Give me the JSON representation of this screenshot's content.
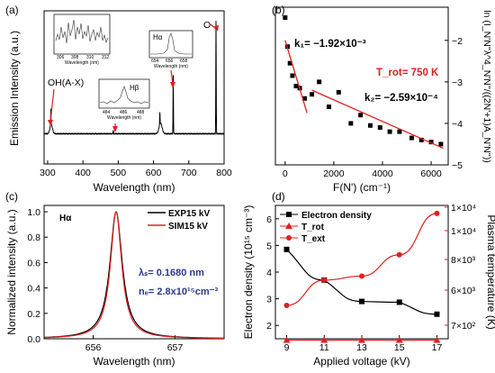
{
  "chart_data": [
    {
      "panel_label": "(a)",
      "type": "line",
      "xlabel": "Wavelength (nm)",
      "ylabel": "Emission Intensity (a.u.)",
      "xlim": [
        290,
        800
      ],
      "xticks": [
        300,
        400,
        500,
        600,
        700,
        800
      ],
      "annotations": [
        "OH(A-X)",
        "Hα",
        "Hβ",
        "O"
      ],
      "spectrum_peaks": [
        {
          "x": 309,
          "y": 0.14
        },
        {
          "x": 486,
          "y": 0.03
        },
        {
          "x": 618,
          "y": 0.1
        },
        {
          "x": 656,
          "y": 0.5
        },
        {
          "x": 777,
          "y": 0.96
        }
      ],
      "insets": [
        {
          "xticks": [
            "306",
            "308",
            "310",
            "312"
          ],
          "xlabel": "Wavelength (nm)"
        },
        {
          "xticks": [
            "484",
            "486",
            "488"
          ],
          "xlabel": "Wavelength (nm)",
          "annotation": "Hβ"
        },
        {
          "xticks": [
            "654",
            "656",
            "658"
          ],
          "xlabel": "Wavelength (nm)",
          "annotation": "Hα"
        }
      ]
    },
    {
      "panel_label": "(b)",
      "type": "scatter",
      "xlabel": "F(N') (cm⁻¹)",
      "ylabel": "ln (I_N'N''λ^4_N'N''/((2N'+1)A_N'N''))",
      "xlim": [
        -400,
        6700
      ],
      "ylim": [
        -5,
        -1.2
      ],
      "xticks": [
        0,
        2000,
        4000,
        6000
      ],
      "yticks": [
        -2,
        -3,
        -4,
        -5
      ],
      "points": [
        {
          "x": 0,
          "y": -1.45
        },
        {
          "x": 100,
          "y": -2.15
        },
        {
          "x": 200,
          "y": -2.55
        },
        {
          "x": 300,
          "y": -2.85
        },
        {
          "x": 450,
          "y": -3.1
        },
        {
          "x": 600,
          "y": -3.15
        },
        {
          "x": 800,
          "y": -3.4
        },
        {
          "x": 1100,
          "y": -3.3
        },
        {
          "x": 1400,
          "y": -3.0
        },
        {
          "x": 1800,
          "y": -3.6
        },
        {
          "x": 2200,
          "y": -3.25
        },
        {
          "x": 2700,
          "y": -4.0
        },
        {
          "x": 3100,
          "y": -3.8
        },
        {
          "x": 3500,
          "y": -4.05
        },
        {
          "x": 3900,
          "y": -4.1
        },
        {
          "x": 4300,
          "y": -4.2
        },
        {
          "x": 4700,
          "y": -4.2
        },
        {
          "x": 5200,
          "y": -4.35
        },
        {
          "x": 5600,
          "y": -4.4
        },
        {
          "x": 6000,
          "y": -4.45
        },
        {
          "x": 6400,
          "y": -4.5
        }
      ],
      "fits": [
        {
          "label": "k₁= −1.92×10⁻³",
          "x": [
            0,
            900
          ],
          "y": [
            -2.0,
            -3.75
          ]
        },
        {
          "label": "k₂= −2.59×10⁻⁴",
          "x": [
            1100,
            6500
          ],
          "y": [
            -3.2,
            -4.6
          ]
        }
      ],
      "annotation": "T_rot= 750 K"
    },
    {
      "panel_label": "(c)",
      "type": "line",
      "xlabel": "Wavelength (nm)",
      "ylabel": "Normalized intensity (a.u.)",
      "xlim": [
        655.4,
        657.6
      ],
      "ylim": [
        0,
        1.05
      ],
      "xticks": [
        656,
        657
      ],
      "yticks": [
        0,
        0.2,
        0.4,
        0.6,
        0.8,
        1.0
      ],
      "center": 656.28,
      "series": [
        {
          "name": "EXP15 kV",
          "color": "#000000",
          "hwhm": 0.092
        },
        {
          "name": "SIM15 kV",
          "color": "#e02020",
          "hwhm": 0.084
        }
      ],
      "annotations": {
        "line": "Hα",
        "stark": "λₛ= 0.1680 nm",
        "density": "nₑ= 2.8x10¹⁵cm⁻³"
      }
    },
    {
      "panel_label": "(d)",
      "type": "line",
      "xlabel": "Applied voltage (kV)",
      "ylabel_left": "Electron density (10¹⁵ cm⁻³)",
      "ylabel_right": "Plasma temperature (K)",
      "categories": [
        9,
        11,
        13,
        15,
        17
      ],
      "ylim_left": [
        1.5,
        6.5
      ],
      "yticks_left": [
        2,
        3,
        4,
        5,
        6
      ],
      "yticks_right": [
        "7×10²",
        "6×10³",
        "8×10³",
        "1×10⁴",
        "1×10⁴"
      ],
      "series": [
        {
          "name": "Electron density",
          "axis": "left",
          "color": "#000000",
          "marker": "square",
          "values": [
            4.85,
            3.7,
            2.9,
            2.87,
            2.42
          ]
        },
        {
          "name": "T_rot",
          "axis": "right",
          "color": "#e02020",
          "marker": "triangle",
          "values": [
            1.45,
            1.45,
            1.45,
            1.45,
            1.45
          ]
        },
        {
          "name": "T_ext",
          "axis": "right",
          "color": "#e02020",
          "marker": "circle",
          "values": [
            2.75,
            3.7,
            3.85,
            4.65,
            6.2
          ]
        }
      ],
      "axis_colors": {
        "left": "#000000",
        "right": "#e02020"
      }
    }
  ]
}
